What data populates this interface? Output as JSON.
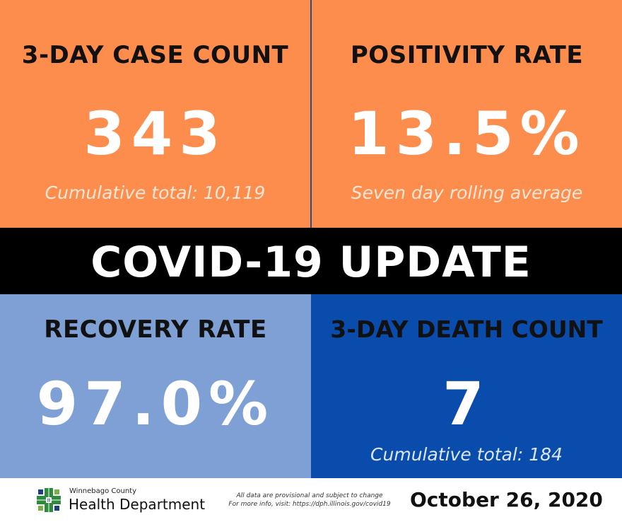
{
  "colors": {
    "orange": "#fd8d4d",
    "light_blue": "#7ea0d4",
    "dark_blue": "#0a4cab",
    "banner": "#000000"
  },
  "top_left": {
    "title": "3-DAY CASE COUNT",
    "value": "343",
    "note": "Cumulative total: 10,119"
  },
  "top_right": {
    "title": "POSITIVITY RATE",
    "value": "13.5%",
    "note": "Seven day rolling average"
  },
  "banner": {
    "text": "COVID-19 UPDATE"
  },
  "bottom_left": {
    "title": "RECOVERY RATE",
    "value": "97.0%"
  },
  "bottom_right": {
    "title": "3-DAY DEATH COUNT",
    "value": "7",
    "note": "Cumulative total: 184"
  },
  "footer": {
    "logo_icon": "health-department-cross-logo",
    "org_line1": "Winnebago County",
    "org_line2": "Health Department",
    "disclaimer_line1": "All data are provisional and subject to change",
    "disclaimer_line2": "For more info, visit: https://dph.illinois.gov/covid19",
    "date": "October 26, 2020"
  }
}
